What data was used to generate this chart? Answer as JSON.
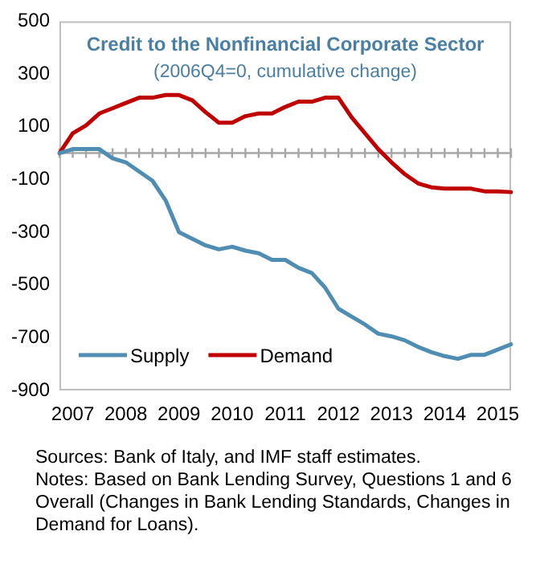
{
  "chart_data": {
    "type": "line",
    "title": "Credit to the Nonfinancial Corporate Sector",
    "subtitle": "(2006Q4=0, cumulative change)",
    "categories": [
      null,
      "2007",
      null,
      null,
      null,
      "2008",
      null,
      null,
      null,
      "2009",
      null,
      null,
      null,
      "2010",
      null,
      null,
      null,
      "2011",
      null,
      null,
      null,
      "2012",
      null,
      null,
      null,
      "2013",
      null,
      null,
      null,
      "2014",
      null,
      null,
      null,
      "2015",
      null
    ],
    "series": [
      {
        "name": "Supply",
        "color": "#4f8db3",
        "values": [
          0,
          15,
          15,
          15,
          -20,
          -35,
          -70,
          -105,
          -180,
          -300,
          -325,
          -350,
          -365,
          -355,
          -370,
          -380,
          -405,
          -405,
          -435,
          -455,
          -510,
          -590,
          -620,
          -650,
          -685,
          -695,
          -710,
          -735,
          -755,
          -770,
          -780,
          -765,
          -765,
          -745,
          -725
        ]
      },
      {
        "name": "Demand",
        "color": "#c00000",
        "values": [
          0,
          75,
          105,
          150,
          170,
          190,
          210,
          210,
          220,
          220,
          200,
          155,
          115,
          115,
          140,
          150,
          150,
          175,
          195,
          195,
          210,
          210,
          135,
          75,
          15,
          -35,
          -80,
          -115,
          -130,
          -135,
          -135,
          -135,
          -145,
          -145,
          -148
        ]
      }
    ],
    "ylim": [
      -900,
      500
    ],
    "yticks": [
      -900,
      -700,
      -500,
      -300,
      -100,
      100,
      300,
      500
    ],
    "ref_lines": [
      {
        "axis": "y",
        "value": 0,
        "color": "#a6a6a6"
      }
    ],
    "grid": false,
    "legend": "bottom left",
    "marker": "none",
    "line_style": "solid",
    "annotations": [
      "Sources: Bank of Italy, and IMF staff estimates.",
      "Notes: Based on Bank Lending Survey, Questions 1 and 6 Overall (Changes in Bank Lending Standards, Changes in Demand for Loans)."
    ]
  }
}
